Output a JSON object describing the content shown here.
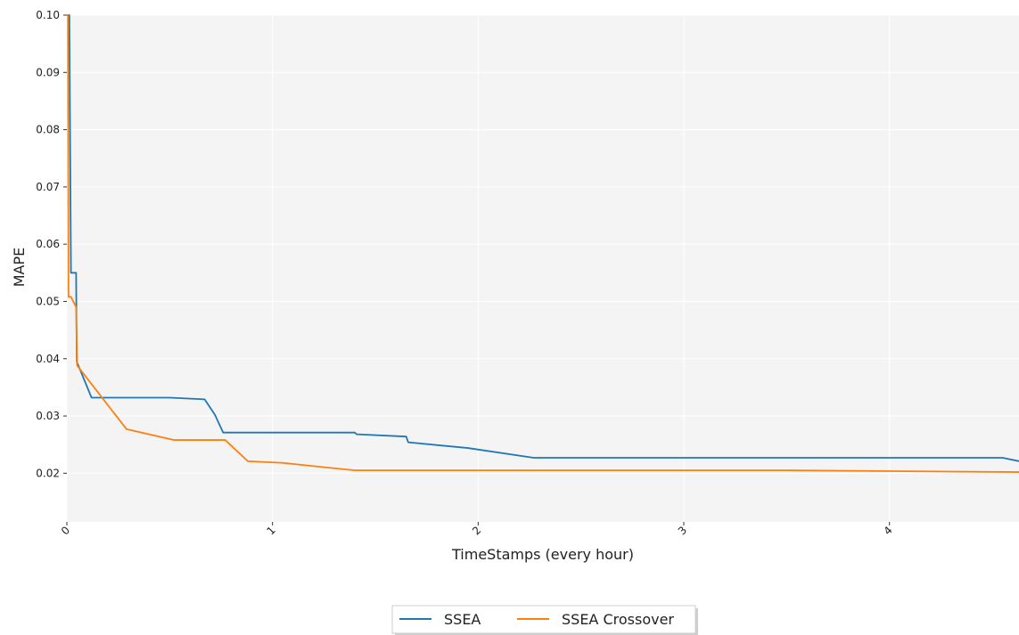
{
  "chart_data": {
    "type": "line",
    "title": "",
    "xlabel": "TimeStamps (every hour)",
    "ylabel": "MAPE",
    "xlim": [
      0,
      4.63
    ],
    "ylim": [
      0.0115,
      0.1
    ],
    "x_ticks": [
      0,
      1,
      2,
      3,
      4
    ],
    "x_tick_labels": [
      "0",
      "1",
      "2",
      "3",
      "4"
    ],
    "y_ticks": [
      0.02,
      0.03,
      0.04,
      0.05,
      0.06,
      0.07,
      0.08,
      0.09,
      0.1
    ],
    "y_tick_labels": [
      "0.02",
      "0.03",
      "0.04",
      "0.05",
      "0.06",
      "0.07",
      "0.08",
      "0.09",
      "0.10"
    ],
    "grid": true,
    "legend_position": "bottom-center",
    "series": [
      {
        "name": "SSEA",
        "color": "#1f77b4",
        "points": [
          [
            0.0,
            0.1
          ],
          [
            0.012,
            0.1
          ],
          [
            0.02,
            0.055
          ],
          [
            0.045,
            0.055
          ],
          [
            0.048,
            0.0395
          ],
          [
            0.12,
            0.0332
          ],
          [
            0.5,
            0.0332
          ],
          [
            0.67,
            0.0329
          ],
          [
            0.72,
            0.0302
          ],
          [
            0.76,
            0.0271
          ],
          [
            1.4,
            0.0271
          ],
          [
            1.41,
            0.0268
          ],
          [
            1.65,
            0.0264
          ],
          [
            1.66,
            0.0254
          ],
          [
            1.95,
            0.0244
          ],
          [
            2.27,
            0.0227
          ],
          [
            4.55,
            0.0227
          ],
          [
            4.63,
            0.0221
          ]
        ]
      },
      {
        "name": "SSEA Crossover",
        "color": "#ff7f0e",
        "points": [
          [
            0.0,
            0.1
          ],
          [
            0.005,
            0.1
          ],
          [
            0.008,
            0.0508
          ],
          [
            0.02,
            0.0508
          ],
          [
            0.045,
            0.049
          ],
          [
            0.05,
            0.0388
          ],
          [
            0.1,
            0.0365
          ],
          [
            0.29,
            0.0277
          ],
          [
            0.52,
            0.0258
          ],
          [
            0.77,
            0.0258
          ],
          [
            0.88,
            0.0221
          ],
          [
            1.05,
            0.0218
          ],
          [
            1.4,
            0.0205
          ],
          [
            2.0,
            0.0205
          ],
          [
            3.5,
            0.0205
          ],
          [
            4.63,
            0.0202
          ]
        ]
      }
    ]
  }
}
